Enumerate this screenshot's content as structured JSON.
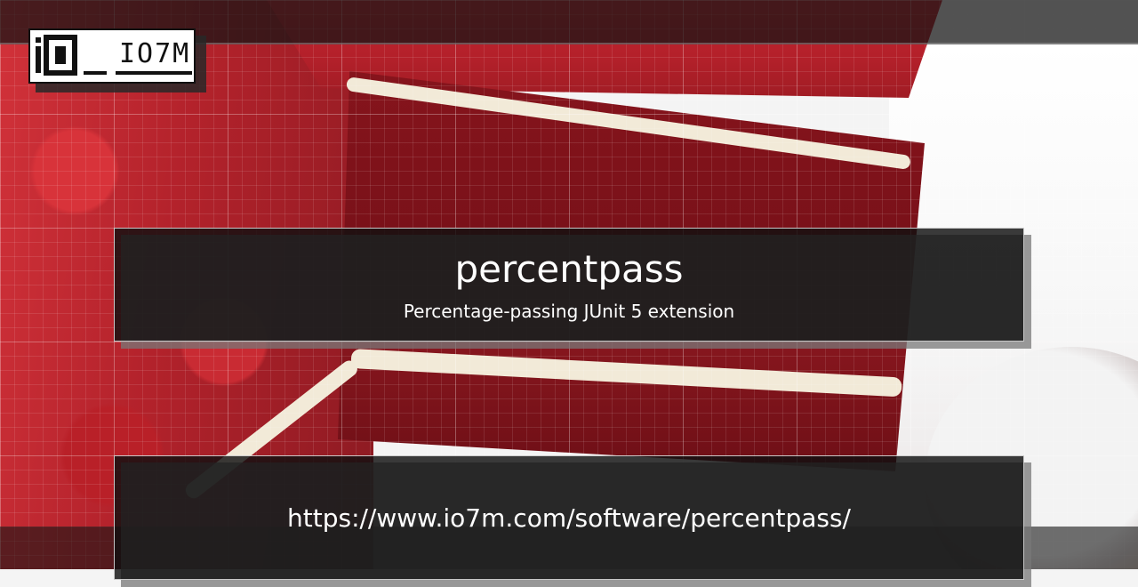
{
  "logo": {
    "text": "IO7M",
    "icon": "io7m-logo-icon"
  },
  "card": {
    "title": "percentpass",
    "subtitle": "Percentage-passing JUnit 5 extension",
    "url": "https://www.io7m.com/software/percentpass/"
  },
  "colors": {
    "panel_background": "#101010",
    "panel_border": "#ffffff",
    "text": "#ffffff",
    "cake_red": "#b3202a",
    "frosting": "#f2ead8"
  }
}
